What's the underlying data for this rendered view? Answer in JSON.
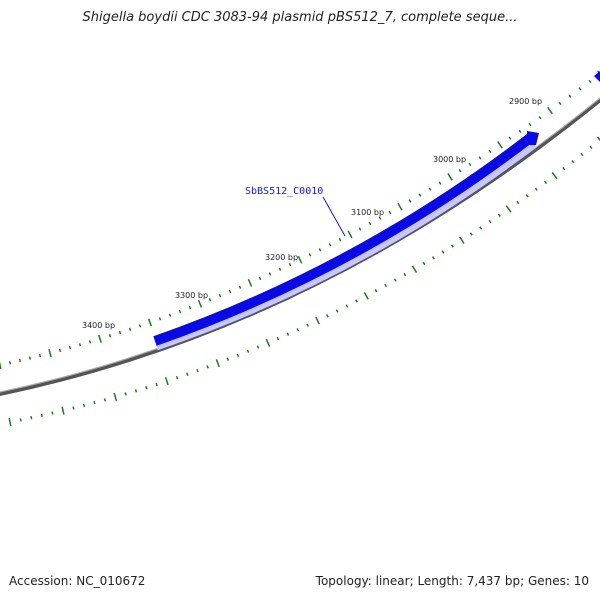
{
  "title": "Shigella boydii CDC 3083-94 plasmid pBS512_7, complete seque...",
  "footer": {
    "accession": "Accession: NC_010672",
    "summary": "Topology: linear; Length: 7,437 bp; Genes: 10"
  },
  "position_labels": [
    "2900 bp",
    "3000 bp",
    "3100 bp",
    "3200 bp",
    "3300 bp",
    "3400 bp"
  ],
  "gene": {
    "name": "SbBS512_C0010"
  },
  "colors": {
    "backbone": "#777777",
    "gene": "#0a0ae6",
    "gene_label": "#1a1ac8",
    "ticks": "#1b7a1b"
  }
}
